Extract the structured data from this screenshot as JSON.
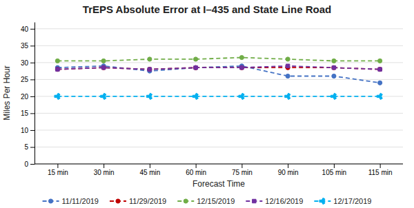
{
  "chart_data": {
    "type": "line",
    "title": "TrEPS Absolute Error at I–435 and State Line Road",
    "xlabel": "Forecast Time",
    "ylabel": "Miles Per Hour",
    "categories": [
      "15 min",
      "30 min",
      "45 min",
      "60 min",
      "75 min",
      "90 min",
      "105 min",
      "115 min"
    ],
    "ylim": [
      0,
      42
    ],
    "yticks": [
      0,
      5,
      10,
      15,
      20,
      25,
      30,
      35,
      40
    ],
    "grid": true,
    "legend": "bottom",
    "series": [
      {
        "name": "11/11/2019",
        "color": "#4472C4",
        "marker": "circle",
        "line_style": "dashed",
        "values": [
          28.5,
          29.0,
          27.5,
          28.5,
          29.0,
          26.0,
          26.0,
          24.0
        ]
      },
      {
        "name": "11/29/2019",
        "color": "#C00000",
        "marker": "circle",
        "line_style": "dashed",
        "values": [
          28.0,
          28.5,
          28.0,
          28.5,
          28.5,
          28.5,
          28.5,
          28.0
        ]
      },
      {
        "name": "12/15/2019",
        "color": "#70AD47",
        "marker": "circle",
        "line_style": "dashed",
        "values": [
          30.5,
          30.5,
          31.0,
          31.0,
          31.5,
          31.0,
          30.5,
          30.5
        ]
      },
      {
        "name": "12/16/2019",
        "color": "#7030A0",
        "marker": "square",
        "line_style": "dashed",
        "values": [
          28.0,
          28.5,
          28.0,
          28.5,
          28.5,
          29.0,
          28.5,
          28.0
        ]
      },
      {
        "name": "12/17/2019",
        "color": "#00B0F0",
        "marker": "tri_right",
        "line_style": "dashed",
        "values": [
          20.0,
          20.0,
          20.0,
          20.0,
          20.0,
          20.0,
          20.0,
          20.0
        ]
      }
    ]
  }
}
